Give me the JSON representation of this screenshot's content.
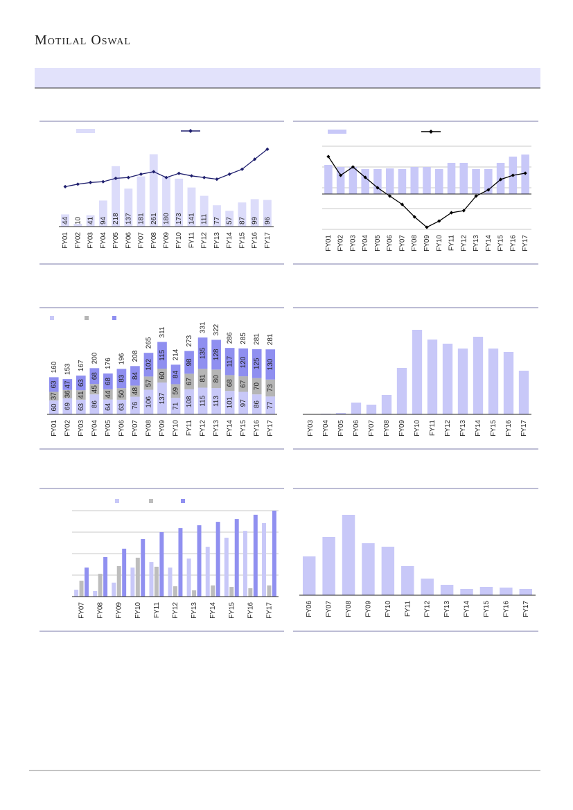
{
  "header": {
    "brand": "Motilal Oswal"
  },
  "chart_data": [
    {
      "type": "combo",
      "categories": [
        "FY01",
        "FY02",
        "FY03",
        "FY04",
        "FY05",
        "FY06",
        "FY07",
        "FY08",
        "FY09",
        "FY10",
        "FY11",
        "FY12",
        "FY13",
        "FY14",
        "FY15",
        "FY16",
        "FY17"
      ],
      "ylim": [
        0,
        300
      ],
      "y2lim": [
        0,
        100
      ],
      "series": [
        {
          "type": "bar",
          "color": "#dcdcfa",
          "data_labels": true,
          "values": [
            44,
            10,
            41,
            94,
            218,
            137,
            181,
            261,
            180,
            173,
            141,
            111,
            77,
            57,
            87,
            99,
            96
          ]
        },
        {
          "type": "line",
          "axis": "y2",
          "color": "#1f1f6e",
          "values": [
            48,
            51,
            53,
            54,
            58,
            59,
            63,
            66,
            59,
            64,
            61,
            59,
            57,
            63,
            69,
            81,
            93
          ]
        }
      ]
    },
    {
      "type": "combo",
      "categories": [
        "FY01",
        "FY02",
        "FY03",
        "FY04",
        "FY05",
        "FY06",
        "FY07",
        "FY08",
        "FY09",
        "FY10",
        "FY11",
        "FY12",
        "FY13",
        "FY14",
        "FY15",
        "FY16",
        "FY17"
      ],
      "ylim": [
        -17,
        23
      ],
      "yticks": [
        -17,
        -7,
        3,
        13,
        23
      ],
      "grid": true,
      "series": [
        {
          "type": "bar",
          "color": "#c8c8f8",
          "values": [
            14,
            13,
            13,
            12,
            12,
            12.3,
            12,
            13,
            13,
            12,
            15,
            15,
            12,
            12,
            15,
            18,
            19
          ]
        },
        {
          "type": "line",
          "color": "#000000",
          "values": [
            18,
            9,
            13,
            8,
            3,
            -1,
            -5,
            -11,
            -16,
            -13,
            -9,
            -8,
            -1,
            2,
            7,
            9,
            10
          ]
        }
      ]
    },
    {
      "type": "stacked_bar",
      "categories": [
        "FY01",
        "FY02",
        "FY03",
        "FY04",
        "FY05",
        "FY06",
        "FY07",
        "FY08",
        "FY09",
        "FY10",
        "FY11",
        "FY12",
        "FY13",
        "FY14",
        "FY15",
        "FY16",
        "FY17"
      ],
      "ylim": [
        0,
        400
      ],
      "series": [
        {
          "color": "#c8c8f8",
          "values": [
            60,
            69,
            63,
            86,
            64,
            63,
            76,
            106,
            137,
            71,
            108,
            115,
            113,
            101,
            97,
            86,
            77
          ]
        },
        {
          "color": "#b5b5b5",
          "values": [
            37,
            36,
            41,
            45,
            44,
            50,
            48,
            57,
            60,
            59,
            67,
            81,
            80,
            68,
            67,
            70,
            73
          ]
        },
        {
          "color": "#8f8ff0",
          "values": [
            63,
            47,
            63,
            68,
            68,
            83,
            84,
            102,
            115,
            84,
            98,
            135,
            128,
            117,
            120,
            125,
            130
          ]
        }
      ],
      "totals": [
        160,
        153,
        167,
        200,
        176,
        196,
        208,
        265,
        311,
        214,
        273,
        331,
        322,
        286,
        285,
        281,
        281
      ]
    },
    {
      "type": "bar",
      "categories": [
        "FY03",
        "FY04",
        "FY05",
        "FY06",
        "FY07",
        "FY08",
        "FY09",
        "FY10",
        "FY11",
        "FY12",
        "FY13",
        "FY14",
        "FY15",
        "FY16",
        "FY17"
      ],
      "ylim": [
        0,
        130
      ],
      "series": [
        {
          "color": "#c8c8f8",
          "values": [
            0.5,
            1,
            2,
            17,
            14,
            28,
            67,
            122,
            108,
            102,
            95,
            112,
            95,
            90,
            63
          ]
        }
      ]
    },
    {
      "type": "grouped_bar",
      "categories": [
        "FY07",
        "FY08",
        "FY09",
        "FY10",
        "FY11",
        "FY12",
        "FY13",
        "FY14",
        "FY15",
        "FY16",
        "FY17"
      ],
      "ylim": [
        0,
        400
      ],
      "yticks": [
        0,
        100,
        200,
        300,
        400
      ],
      "grid": true,
      "series": [
        {
          "color": "#c8c8f8",
          "values": [
            32,
            26,
            65,
            135,
            161,
            135,
            177,
            232,
            274,
            306,
            342
          ]
        },
        {
          "color": "#bdbdbd",
          "values": [
            74,
            106,
            142,
            181,
            139,
            48,
            29,
            52,
            45,
            39,
            52
          ]
        },
        {
          "color": "#9090f0",
          "values": [
            135,
            184,
            223,
            268,
            300,
            319,
            332,
            348,
            361,
            381,
            400
          ]
        }
      ]
    },
    {
      "type": "bar",
      "categories": [
        "FY06",
        "FY07",
        "FY08",
        "FY09",
        "FY10",
        "FY11",
        "FY12",
        "FY13",
        "FY14",
        "FY15",
        "FY16",
        "FY17"
      ],
      "ylim": [
        0,
        125
      ],
      "series": [
        {
          "color": "#c8c8f8",
          "values": [
            56,
            84,
            116,
            75,
            70,
            42,
            24,
            15,
            9,
            12,
            11,
            9
          ]
        }
      ]
    }
  ]
}
